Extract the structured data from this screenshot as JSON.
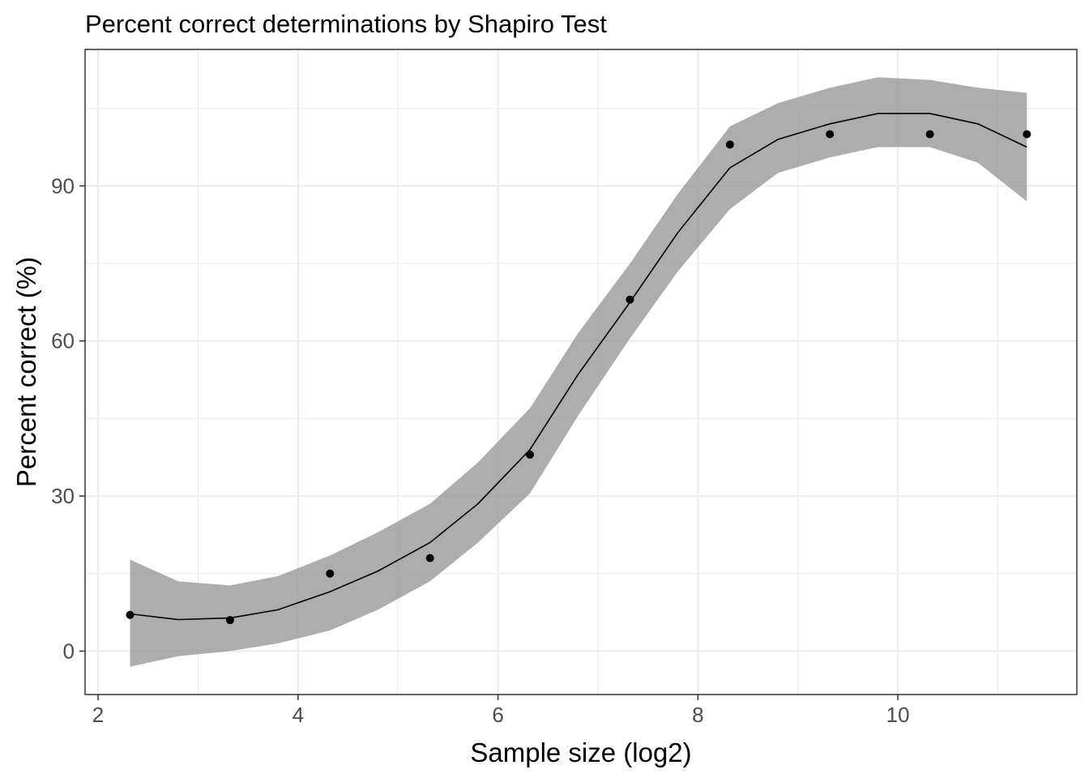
{
  "chart_data": {
    "type": "scatter",
    "title": "Percent correct determinations by Shapiro Test",
    "xlabel": "Sample size (log2)",
    "ylabel": "Percent correct (%)",
    "xlim": [
      1.87,
      11.79
    ],
    "ylim": [
      -8.4,
      116.4
    ],
    "xticks": [
      2,
      4,
      6,
      8,
      10
    ],
    "yticks": [
      0,
      30,
      60,
      90
    ],
    "x_minor_ticks": [
      3,
      5,
      7,
      9,
      11
    ],
    "y_minor_ticks": [
      15,
      45,
      75,
      105
    ],
    "grid": true,
    "points": {
      "x": [
        2.32,
        3.32,
        4.32,
        5.32,
        6.32,
        7.32,
        8.32,
        9.32,
        10.32,
        11.29
      ],
      "y": [
        7,
        6,
        15,
        18,
        38,
        68,
        98,
        100,
        100,
        100
      ]
    },
    "smooth": {
      "x": [
        2.32,
        2.8,
        3.32,
        3.8,
        4.32,
        4.8,
        5.32,
        5.8,
        6.32,
        6.8,
        7.32,
        7.8,
        8.32,
        8.8,
        9.32,
        9.8,
        10.32,
        10.8,
        11.29
      ],
      "y": [
        7.2,
        6.1,
        6.4,
        8.0,
        11.5,
        15.5,
        21.0,
        28.5,
        39.0,
        53.5,
        67.5,
        81.0,
        93.5,
        99.0,
        102.0,
        104.0,
        104.0,
        102.0,
        97.5
      ],
      "lower": [
        -3.0,
        -1.0,
        0.0,
        1.5,
        4.0,
        8.0,
        13.5,
        21.0,
        30.5,
        45.5,
        60.5,
        73.5,
        85.5,
        92.5,
        95.5,
        97.5,
        97.5,
        94.5,
        87.0
      ],
      "upper": [
        17.7,
        13.5,
        12.7,
        14.5,
        18.5,
        23.0,
        28.5,
        36.5,
        47.0,
        61.5,
        75.0,
        88.5,
        101.5,
        106.0,
        109.0,
        111.0,
        110.5,
        109.0,
        108.0
      ]
    },
    "colors": {
      "points": "#000000",
      "line": "#000000",
      "ribbon": "#999999",
      "grid": "#ebebeb",
      "panel_border": "#333333"
    }
  }
}
